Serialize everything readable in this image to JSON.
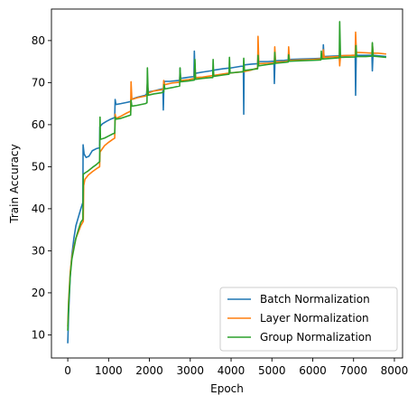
{
  "chart_data": {
    "type": "line",
    "title": "",
    "xlabel": "Epoch",
    "ylabel": "Train Accuracy",
    "xlim": [
      -400,
      8200
    ],
    "ylim": [
      4.5,
      87.5
    ],
    "xticks": [
      0,
      1000,
      2000,
      3000,
      4000,
      5000,
      6000,
      7000,
      8000
    ],
    "yticks": [
      10,
      20,
      30,
      40,
      50,
      60,
      70,
      80
    ],
    "grid": false,
    "legend": {
      "placement": "lower-right"
    },
    "series": [
      {
        "name": "Batch Normalization",
        "color": "#1f77b4",
        "points": [
          [
            0,
            8
          ],
          [
            20,
            15
          ],
          [
            60,
            24
          ],
          [
            100,
            29
          ],
          [
            150,
            33
          ],
          [
            200,
            36
          ],
          [
            260,
            38
          ],
          [
            320,
            40
          ],
          [
            370,
            41.5
          ],
          [
            375,
            55.2
          ],
          [
            400,
            53
          ],
          [
            450,
            52.2
          ],
          [
            520,
            52.5
          ],
          [
            600,
            53.8
          ],
          [
            700,
            54.3
          ],
          [
            780,
            54.5
          ],
          [
            785,
            59.5
          ],
          [
            850,
            60.2
          ],
          [
            950,
            60.8
          ],
          [
            1050,
            61.3
          ],
          [
            1150,
            61.7
          ],
          [
            1160,
            66
          ],
          [
            1180,
            64.8
          ],
          [
            1300,
            65
          ],
          [
            1450,
            65.3
          ],
          [
            1540,
            65.5
          ],
          [
            1550,
            66
          ],
          [
            1700,
            66.5
          ],
          [
            1900,
            67
          ],
          [
            1930,
            67.3
          ],
          [
            1950,
            69.8
          ],
          [
            1970,
            67.8
          ],
          [
            2100,
            68
          ],
          [
            2300,
            68.5
          ],
          [
            2330,
            68.5
          ],
          [
            2340,
            63.5
          ],
          [
            2355,
            69.5
          ],
          [
            2370,
            70.3
          ],
          [
            2500,
            70.3
          ],
          [
            2700,
            70.5
          ],
          [
            2740,
            70.5
          ],
          [
            2750,
            73.4
          ],
          [
            2765,
            71
          ],
          [
            2900,
            71.2
          ],
          [
            3050,
            71.4
          ],
          [
            3090,
            71.4
          ],
          [
            3100,
            77.5
          ],
          [
            3115,
            72.2
          ],
          [
            3300,
            72.5
          ],
          [
            3500,
            72.8
          ],
          [
            3600,
            73
          ],
          [
            3800,
            73.3
          ],
          [
            4000,
            73.5
          ],
          [
            4250,
            73.9
          ],
          [
            4300,
            73.9
          ],
          [
            4310,
            62.5
          ],
          [
            4320,
            74.2
          ],
          [
            4500,
            74.4
          ],
          [
            4650,
            74.5
          ],
          [
            4660,
            76.5
          ],
          [
            4680,
            75
          ],
          [
            4900,
            75
          ],
          [
            5050,
            75.1
          ],
          [
            5060,
            69.8
          ],
          [
            5075,
            75.2
          ],
          [
            5300,
            75.3
          ],
          [
            5400,
            75.4
          ],
          [
            5410,
            77.2
          ],
          [
            5425,
            75.5
          ],
          [
            5700,
            75.6
          ],
          [
            6000,
            75.7
          ],
          [
            6250,
            75.8
          ],
          [
            6260,
            79
          ],
          [
            6275,
            76.2
          ],
          [
            6500,
            76.3
          ],
          [
            6700,
            76.4
          ],
          [
            7000,
            76.5
          ],
          [
            7040,
            76.5
          ],
          [
            7050,
            67
          ],
          [
            7065,
            76.5
          ],
          [
            7300,
            76.5
          ],
          [
            7450,
            76.5
          ],
          [
            7460,
            72.8
          ],
          [
            7475,
            76.5
          ],
          [
            7600,
            76.4
          ],
          [
            7800,
            76.2
          ]
        ]
      },
      {
        "name": "Layer Normalization",
        "color": "#ff7f0e",
        "points": [
          [
            0,
            12
          ],
          [
            20,
            18
          ],
          [
            60,
            25
          ],
          [
            100,
            28.5
          ],
          [
            150,
            31
          ],
          [
            200,
            33
          ],
          [
            260,
            34.5
          ],
          [
            320,
            36
          ],
          [
            380,
            37
          ],
          [
            390,
            45.5
          ],
          [
            420,
            47
          ],
          [
            500,
            48
          ],
          [
            600,
            48.8
          ],
          [
            700,
            49.5
          ],
          [
            780,
            50
          ],
          [
            790,
            53.5
          ],
          [
            900,
            55
          ],
          [
            1000,
            55.8
          ],
          [
            1100,
            56.5
          ],
          [
            1150,
            56.8
          ],
          [
            1160,
            62.5
          ],
          [
            1180,
            61.5
          ],
          [
            1300,
            62
          ],
          [
            1450,
            62.8
          ],
          [
            1540,
            63.2
          ],
          [
            1550,
            70.2
          ],
          [
            1570,
            66
          ],
          [
            1700,
            66.4
          ],
          [
            1900,
            66.8
          ],
          [
            1940,
            67
          ],
          [
            1950,
            70
          ],
          [
            1970,
            67.5
          ],
          [
            2100,
            68
          ],
          [
            2300,
            68.3
          ],
          [
            2340,
            68.5
          ],
          [
            2350,
            70.5
          ],
          [
            2370,
            69.5
          ],
          [
            2550,
            69.9
          ],
          [
            2740,
            70.1
          ],
          [
            2750,
            72.3
          ],
          [
            2765,
            70.5
          ],
          [
            2950,
            70.7
          ],
          [
            3100,
            71
          ],
          [
            3115,
            74.5
          ],
          [
            3130,
            71.2
          ],
          [
            3300,
            71.3
          ],
          [
            3500,
            71.6
          ],
          [
            3700,
            71.9
          ],
          [
            3900,
            72.2
          ],
          [
            4100,
            72.4
          ],
          [
            4300,
            72.6
          ],
          [
            4500,
            73
          ],
          [
            4650,
            73.5
          ],
          [
            4660,
            81
          ],
          [
            4680,
            74.5
          ],
          [
            4900,
            74.6
          ],
          [
            5060,
            74.7
          ],
          [
            5070,
            78.5
          ],
          [
            5090,
            74.9
          ],
          [
            5300,
            75
          ],
          [
            5400,
            75.1
          ],
          [
            5410,
            78.5
          ],
          [
            5430,
            75.3
          ],
          [
            5700,
            75.4
          ],
          [
            6000,
            75.5
          ],
          [
            6250,
            75.7
          ],
          [
            6260,
            77.8
          ],
          [
            6280,
            76
          ],
          [
            6600,
            76.2
          ],
          [
            6650,
            76.2
          ],
          [
            6660,
            74
          ],
          [
            6680,
            76.4
          ],
          [
            7000,
            76.5
          ],
          [
            7040,
            76.5
          ],
          [
            7050,
            82
          ],
          [
            7070,
            77.2
          ],
          [
            7300,
            77.1
          ],
          [
            7450,
            77
          ],
          [
            7460,
            79.2
          ],
          [
            7480,
            77
          ],
          [
            7600,
            77
          ],
          [
            7800,
            76.8
          ]
        ]
      },
      {
        "name": "Group Normalization",
        "color": "#2ca02c",
        "points": [
          [
            0,
            11
          ],
          [
            20,
            17
          ],
          [
            60,
            24
          ],
          [
            100,
            28
          ],
          [
            150,
            30.5
          ],
          [
            200,
            33
          ],
          [
            260,
            35
          ],
          [
            320,
            36.8
          ],
          [
            370,
            37.5
          ],
          [
            380,
            48.2
          ],
          [
            420,
            48.5
          ],
          [
            500,
            49
          ],
          [
            600,
            49.8
          ],
          [
            700,
            50.5
          ],
          [
            780,
            51.2
          ],
          [
            790,
            61.8
          ],
          [
            800,
            56.5
          ],
          [
            900,
            56.8
          ],
          [
            1000,
            57.3
          ],
          [
            1100,
            57.8
          ],
          [
            1150,
            58
          ],
          [
            1160,
            61.8
          ],
          [
            1180,
            61.3
          ],
          [
            1300,
            61.5
          ],
          [
            1450,
            62
          ],
          [
            1540,
            62.3
          ],
          [
            1550,
            65.8
          ],
          [
            1570,
            64.4
          ],
          [
            1700,
            64.6
          ],
          [
            1900,
            65
          ],
          [
            1940,
            65.2
          ],
          [
            1950,
            73.5
          ],
          [
            1970,
            67
          ],
          [
            2100,
            67.3
          ],
          [
            2300,
            67.6
          ],
          [
            2350,
            67.8
          ],
          [
            2360,
            69.5
          ],
          [
            2380,
            68.5
          ],
          [
            2550,
            68.8
          ],
          [
            2740,
            69.2
          ],
          [
            2750,
            73.5
          ],
          [
            2765,
            70.2
          ],
          [
            2950,
            70.4
          ],
          [
            3100,
            70.6
          ],
          [
            3115,
            75.5
          ],
          [
            3130,
            70.8
          ],
          [
            3300,
            71
          ],
          [
            3500,
            71.2
          ],
          [
            3550,
            71.2
          ],
          [
            3560,
            75.5
          ],
          [
            3575,
            71.5
          ],
          [
            3800,
            71.8
          ],
          [
            3950,
            72
          ],
          [
            3960,
            76
          ],
          [
            3975,
            72.3
          ],
          [
            4200,
            72.5
          ],
          [
            4300,
            72.6
          ],
          [
            4310,
            75.8
          ],
          [
            4325,
            72.9
          ],
          [
            4500,
            73.1
          ],
          [
            4650,
            73.3
          ],
          [
            4660,
            76.5
          ],
          [
            4675,
            74
          ],
          [
            4900,
            74.3
          ],
          [
            5060,
            74.5
          ],
          [
            5070,
            77.2
          ],
          [
            5085,
            74.6
          ],
          [
            5300,
            74.8
          ],
          [
            5400,
            74.9
          ],
          [
            5410,
            76.6
          ],
          [
            5425,
            75.1
          ],
          [
            5700,
            75.2
          ],
          [
            6000,
            75.3
          ],
          [
            6200,
            75.4
          ],
          [
            6210,
            77.5
          ],
          [
            6225,
            75.6
          ],
          [
            6500,
            75.8
          ],
          [
            6650,
            75.9
          ],
          [
            6660,
            84.5
          ],
          [
            6680,
            76
          ],
          [
            7000,
            76.1
          ],
          [
            7050,
            76.1
          ],
          [
            7060,
            78.8
          ],
          [
            7075,
            76.2
          ],
          [
            7300,
            76.2
          ],
          [
            7450,
            76.3
          ],
          [
            7460,
            79.5
          ],
          [
            7480,
            76.3
          ],
          [
            7600,
            76.2
          ],
          [
            7800,
            76
          ]
        ]
      }
    ]
  }
}
